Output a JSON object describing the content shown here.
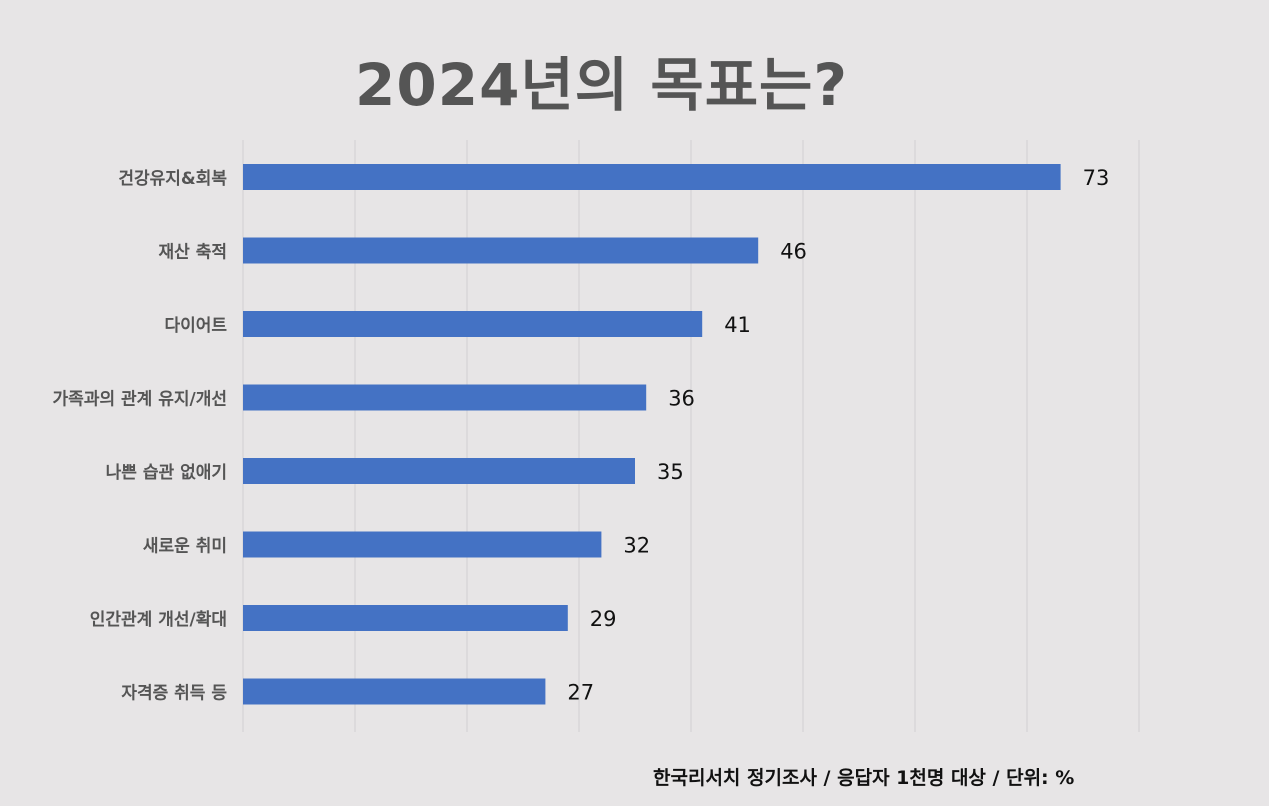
{
  "chart_data": {
    "type": "bar",
    "orientation": "horizontal",
    "title": "2024년의 목표는?",
    "categories": [
      "건강유지&회복",
      "재산 축적",
      "다이어트",
      "가족과의 관계 유지/개선",
      "나쁜 습관 없애기",
      "새로운 취미",
      "인간관계 개선/확대",
      "자격증 취득 등"
    ],
    "values": [
      73,
      46,
      41,
      36,
      35,
      32,
      29,
      27
    ],
    "data_labels": [
      "73",
      "46",
      "41",
      "36",
      "35",
      "32",
      "29",
      "27"
    ],
    "xlim": [
      0,
      80
    ],
    "grid": true,
    "legend": "none",
    "bar_color": "#4472c4"
  },
  "footer": {
    "source_note": "한국리서치 정기조사 / 응답자 1천명 대상 / 단위: %"
  }
}
